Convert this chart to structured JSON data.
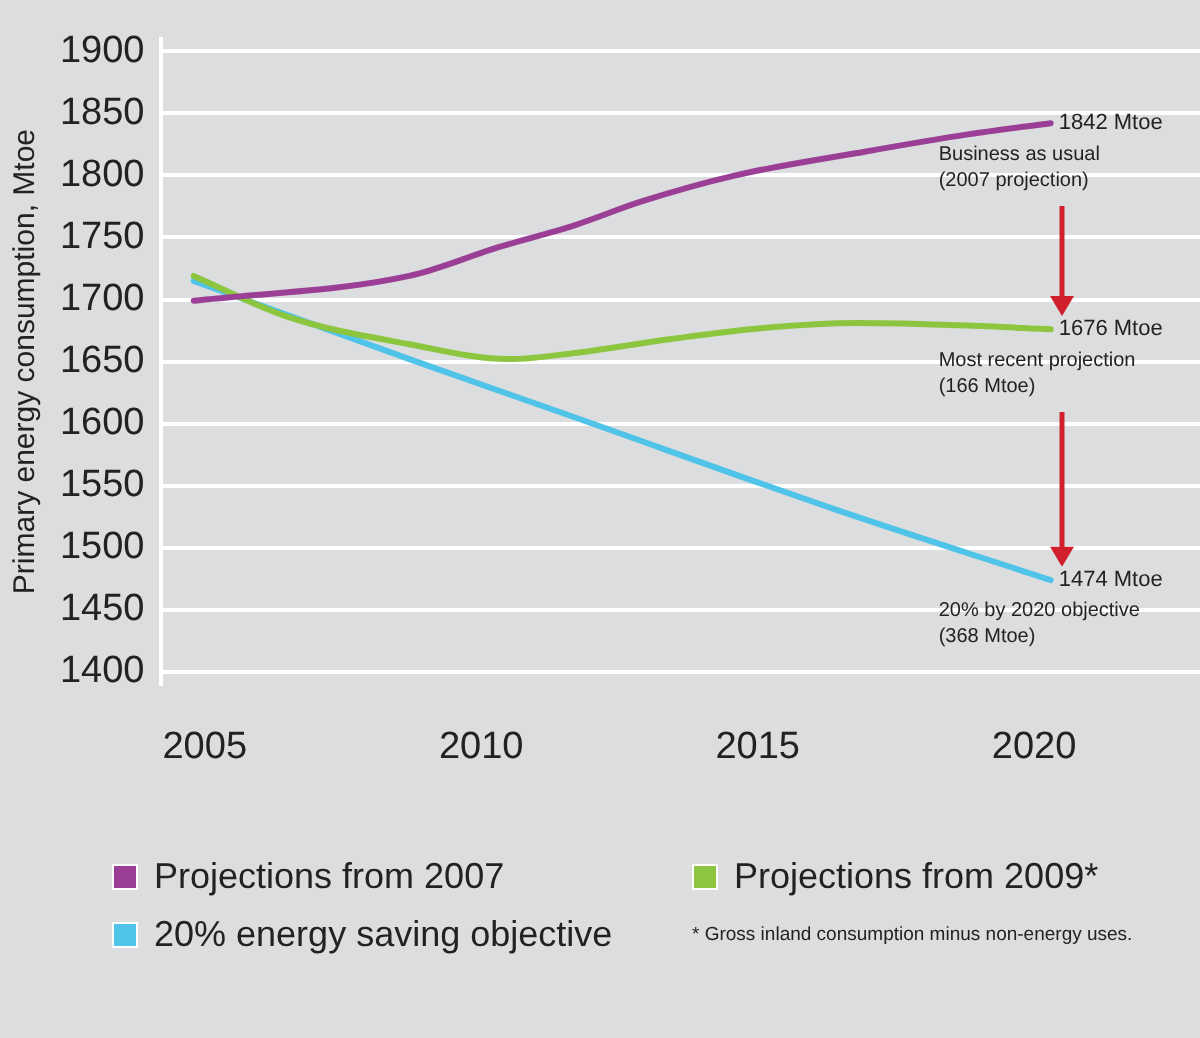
{
  "chart_data": {
    "type": "line",
    "ylabel": "Primary energy consumption, Mtoe",
    "xlim": [
      2004.2,
      2023
    ],
    "xticks": [
      2005,
      2010,
      2015,
      2020
    ],
    "ylim": [
      1390,
      1910
    ],
    "yticks": [
      1400,
      1450,
      1500,
      1550,
      1600,
      1650,
      1700,
      1750,
      1800,
      1850,
      1900
    ],
    "grid": "y",
    "legend": "bottom",
    "marker": "none",
    "line_style": "solid",
    "series": [
      {
        "name": "Projections from 2007",
        "color": "#9b3f96",
        "x": [
          2004.8,
          2008.7,
          2010.3,
          2011.7,
          2012.9,
          2014.6,
          2016.8,
          2018.8,
          2020.3
        ],
        "values": [
          1699,
          1719,
          1742,
          1760,
          1779,
          1800,
          1818,
          1833,
          1842
        ],
        "value_labels": [
          null,
          null,
          null,
          null,
          null,
          null,
          null,
          null,
          "1842 Mtoe"
        ]
      },
      {
        "name": "Projections from 2009*",
        "color": "#8cc63f",
        "x": [
          2004.8,
          2006.5,
          2008.7,
          2010.5,
          2011.7,
          2013.4,
          2015.1,
          2016.8,
          2018.8,
          2020.3
        ],
        "values": [
          1719,
          1686,
          1664,
          1652,
          1657,
          1668,
          1677,
          1681,
          1679,
          1676
        ],
        "value_labels": [
          null,
          null,
          null,
          null,
          null,
          null,
          null,
          null,
          null,
          "1676 Mtoe"
        ]
      },
      {
        "name": "20% energy saving objective",
        "color": "#4fc3e8",
        "x": [
          2004.8,
          2008.7,
          2011.7,
          2016.4,
          2020.3
        ],
        "values": [
          1715,
          1652,
          1605,
          1531,
          1474
        ],
        "value_labels": [
          null,
          null,
          null,
          null,
          "1474 Mtoe"
        ]
      }
    ],
    "annotations": [
      "Business as usual\n(2007 projection)",
      "Most recent projection\n(166 Mtoe)",
      "20% by 2020 objective\n(368 Mtoe)",
      "* Gross inland consumption minus non-energy uses."
    ]
  }
}
